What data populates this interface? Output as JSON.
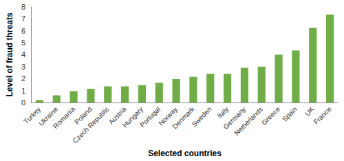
{
  "chart_data": {
    "type": "bar",
    "x_label": "Selected countries",
    "y_label": "Level of fraud threats",
    "categories": [
      "Turkey",
      "Ukraine",
      "Romania",
      "Poland",
      "Czech Republic",
      "Austria",
      "Hungary",
      "Portugal",
      "Norway",
      "Denmark",
      "Sweden",
      "Italy",
      "Germany",
      "Netherlands",
      "Greece",
      "Spain",
      "UK",
      "France"
    ],
    "values": [
      0.2,
      0.6,
      0.95,
      1.15,
      1.35,
      1.35,
      1.45,
      1.65,
      1.95,
      2.15,
      2.4,
      2.4,
      2.9,
      3.0,
      4.0,
      4.35,
      6.25,
      7.35
    ],
    "color": "#70ad47",
    "ylim": [
      0,
      8
    ],
    "yticks": [
      0,
      1,
      2,
      3,
      4,
      5,
      6,
      7,
      8
    ],
    "grid": false
  }
}
